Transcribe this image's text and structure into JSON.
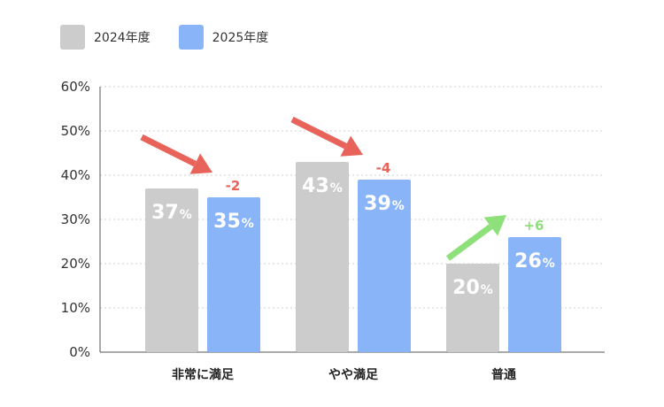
{
  "legend": [
    {
      "label": "2024年度",
      "color": "#cccccc"
    },
    {
      "label": "2025年度",
      "color": "#8ab4f8"
    }
  ],
  "chart_data": {
    "type": "bar",
    "categories": [
      "非常に満足",
      "やや満足",
      "普通"
    ],
    "series": [
      {
        "name": "2024年度",
        "values": [
          37,
          43,
          20
        ],
        "color": "#cccccc"
      },
      {
        "name": "2025年度",
        "values": [
          35,
          39,
          26
        ],
        "color": "#8ab4f8"
      }
    ],
    "ylim": [
      0,
      60
    ],
    "y_ticks": [
      "0%",
      "10%",
      "20%",
      "30%",
      "40%",
      "50%",
      "60%"
    ],
    "value_suffix": "%",
    "grid": true,
    "legend_position": "top-left",
    "annotations": [
      {
        "category": "非常に満足",
        "text": "-2",
        "direction": "down",
        "color": "#e8645a"
      },
      {
        "category": "やや満足",
        "text": "-4",
        "direction": "down",
        "color": "#e8645a"
      },
      {
        "category": "普通",
        "text": "+6",
        "direction": "up",
        "color": "#8ee07a"
      }
    ]
  }
}
